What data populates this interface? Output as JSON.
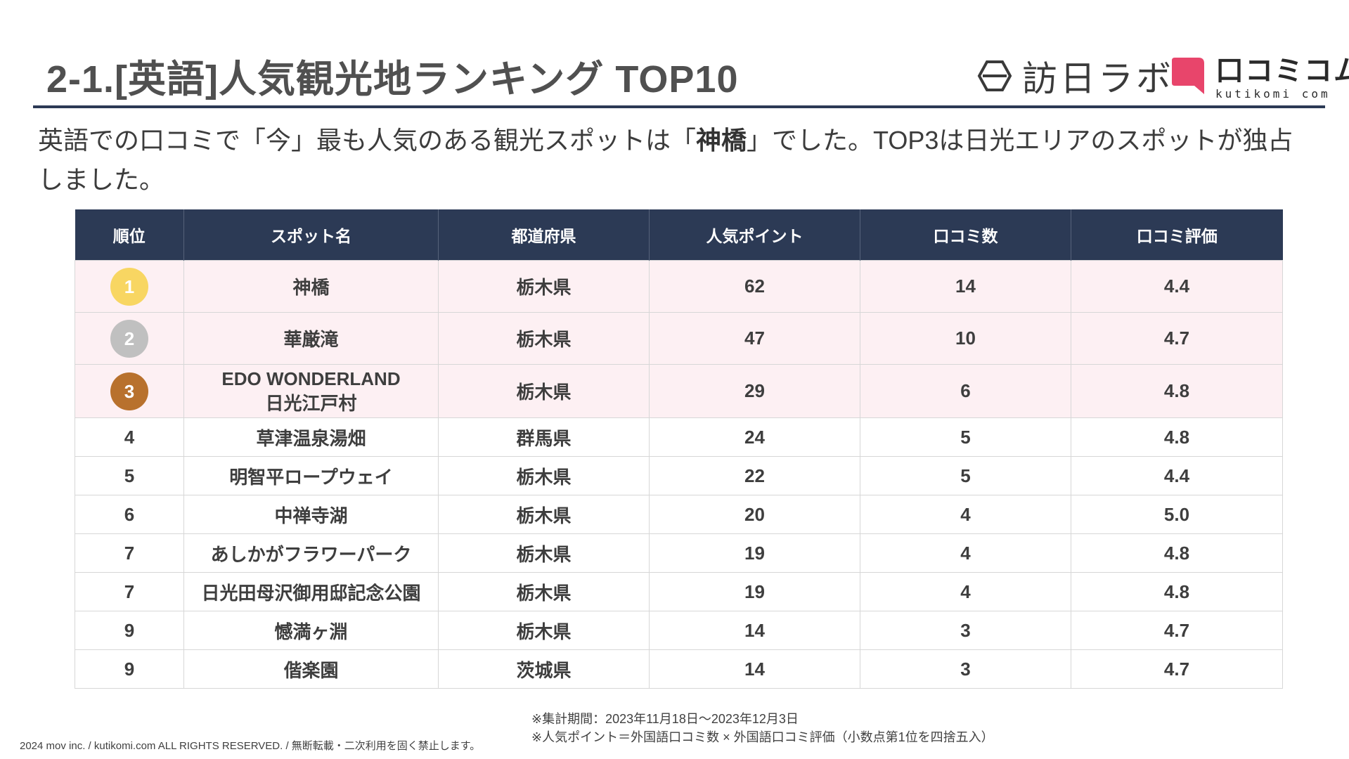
{
  "title": "2-1.[英語]人気観光地ランキング TOP10",
  "logos": {
    "brand1": "訪日ラボ",
    "brand2": "口コミコム",
    "brand2_sub": "kutikomi com"
  },
  "lead": {
    "p1": "英語での口コミで「今」最も人気のある観光スポットは「",
    "bold": "神橋",
    "p2": "」でした。TOP3は日光エリアのスポットが独占しました。"
  },
  "table": {
    "headers": [
      "順位",
      "スポット名",
      "都道府県",
      "人気ポイント",
      "口コミ数",
      "口コミ評価"
    ],
    "rows": [
      {
        "rank": "1",
        "spot": "神橋",
        "spot2": "",
        "pref": "栃木県",
        "points": "62",
        "reviews": "14",
        "rating": "4.4"
      },
      {
        "rank": "2",
        "spot": "華厳滝",
        "spot2": "",
        "pref": "栃木県",
        "points": "47",
        "reviews": "10",
        "rating": "4.7"
      },
      {
        "rank": "3",
        "spot": "EDO WONDERLAND",
        "spot2": "日光江戸村",
        "pref": "栃木県",
        "points": "29",
        "reviews": "6",
        "rating": "4.8"
      },
      {
        "rank": "4",
        "spot": "草津温泉湯畑",
        "spot2": "",
        "pref": "群馬県",
        "points": "24",
        "reviews": "5",
        "rating": "4.8"
      },
      {
        "rank": "5",
        "spot": "明智平ロープウェイ",
        "spot2": "",
        "pref": "栃木県",
        "points": "22",
        "reviews": "5",
        "rating": "4.4"
      },
      {
        "rank": "6",
        "spot": "中禅寺湖",
        "spot2": "",
        "pref": "栃木県",
        "points": "20",
        "reviews": "4",
        "rating": "5.0"
      },
      {
        "rank": "7",
        "spot": "あしかがフラワーパーク",
        "spot2": "",
        "pref": "栃木県",
        "points": "19",
        "reviews": "4",
        "rating": "4.8"
      },
      {
        "rank": "7",
        "spot": "日光田母沢御用邸記念公園",
        "spot2": "",
        "pref": "栃木県",
        "points": "19",
        "reviews": "4",
        "rating": "4.8"
      },
      {
        "rank": "9",
        "spot": "憾満ヶ淵",
        "spot2": "",
        "pref": "栃木県",
        "points": "14",
        "reviews": "3",
        "rating": "4.7"
      },
      {
        "rank": "9",
        "spot": "偕楽園",
        "spot2": "",
        "pref": "茨城県",
        "points": "14",
        "reviews": "3",
        "rating": "4.7"
      }
    ]
  },
  "notes": {
    "period": "※集計期間：2023年11月18日～2023年12月3日",
    "formula": "※人気ポイント＝外国語口コミ数 × 外国語口コミ評価（小数点第1位を四捨五入）"
  },
  "copyright": "2024 mov inc. / kutikomi.com ALL RIGHTS RESERVED. / 無断転載・二次利用を固く禁止します。",
  "colors": {
    "navy": "#2c3a55",
    "highlight": "#fdf0f3",
    "gold": "#f8d662",
    "silver": "#c0c0c0",
    "bronze": "#b8712d",
    "brand_pink": "#e8456b"
  }
}
